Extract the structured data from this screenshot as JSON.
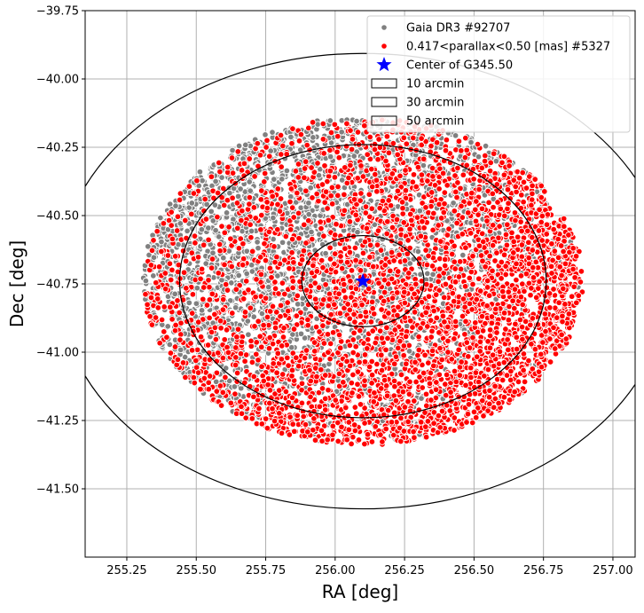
{
  "chart_data": {
    "type": "scatter",
    "xlabel": "RA [deg]",
    "ylabel": "Dec [deg]",
    "xlim": [
      255.1,
      257.08
    ],
    "ylim": [
      -41.75,
      -39.75
    ],
    "y_inverted": false,
    "grid": true,
    "x_ticks": [
      {
        "value": 255.25,
        "label": "255.25"
      },
      {
        "value": 255.5,
        "label": "255.50"
      },
      {
        "value": 255.75,
        "label": "255.75"
      },
      {
        "value": 256.0,
        "label": "256.00"
      },
      {
        "value": 256.25,
        "label": "256.25"
      },
      {
        "value": 256.5,
        "label": "256.50"
      },
      {
        "value": 256.75,
        "label": "256.75"
      },
      {
        "value": 257.0,
        "label": "257.00"
      }
    ],
    "y_ticks": [
      {
        "value": -39.75,
        "label": "−39.75"
      },
      {
        "value": -40.0,
        "label": "−40.00"
      },
      {
        "value": -40.25,
        "label": "−40.25"
      },
      {
        "value": -40.5,
        "label": "−40.50"
      },
      {
        "value": -40.75,
        "label": "−40.75"
      },
      {
        "value": -41.0,
        "label": "−41.00"
      },
      {
        "value": -41.25,
        "label": "−41.25"
      },
      {
        "value": -41.5,
        "label": "−41.50"
      }
    ],
    "center": {
      "ra": 256.1,
      "dec": -40.74,
      "label": "Center of G345.50",
      "color": "#0000ff"
    },
    "circles_arcmin": [
      10,
      30,
      50
    ],
    "series": [
      {
        "name": "Gaia DR3 #92707",
        "color": "#808080",
        "count": 92707
      },
      {
        "name": "0.417<parallax<0.50 [mas] #5327",
        "color": "#ff0000",
        "count": 5327
      }
    ],
    "legend": {
      "position": "top-right",
      "entries": [
        {
          "label": "Gaia DR3 #92707",
          "marker": "dot",
          "color": "#808080"
        },
        {
          "label": "0.417<parallax<0.50 [mas] #5327",
          "marker": "dot",
          "color": "#ff0000"
        },
        {
          "label": "Center of G345.50",
          "marker": "star",
          "color": "#0000ff"
        },
        {
          "label": "10 arcmin",
          "marker": "rect",
          "color": "#000000"
        },
        {
          "label": "30 arcmin",
          "marker": "rect",
          "color": "#000000"
        },
        {
          "label": "50 arcmin",
          "marker": "rect",
          "color": "#000000"
        }
      ]
    }
  }
}
